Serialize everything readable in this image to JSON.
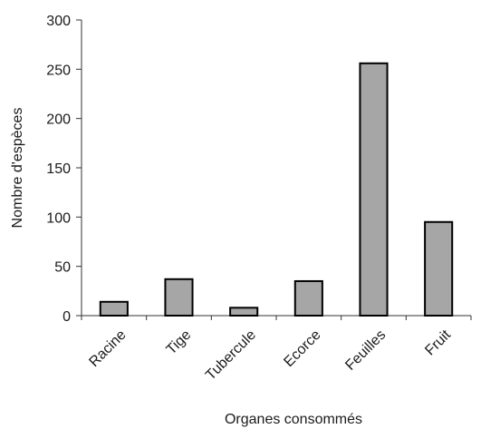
{
  "chart_data": {
    "type": "bar",
    "categories": [
      "Racine",
      "Tige",
      "Tubercule",
      "Ecorce",
      "Feuilles",
      "Fruit"
    ],
    "values": [
      14,
      37,
      8,
      35,
      256,
      95
    ],
    "xlabel": "Organes consommés",
    "ylabel": "Nombre d'espèces",
    "ylim": [
      0,
      300
    ],
    "yticks": [
      0,
      50,
      100,
      150,
      200,
      250,
      300
    ],
    "bar_color": "#a6a6a6",
    "bar_edge_color": "#000000",
    "grid": false,
    "legend": "none"
  }
}
